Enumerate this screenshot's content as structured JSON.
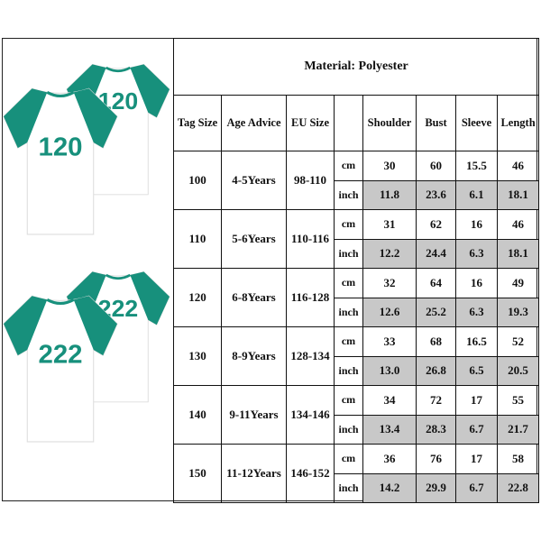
{
  "title": "Material: Polyester",
  "headers": {
    "tag_size": "Tag Size",
    "age_advice": "Age Advice",
    "eu_size": "EU Size",
    "unit": "",
    "shoulder": "Shoulder",
    "bust": "Bust",
    "sleeve": "Sleeve",
    "length": "Length"
  },
  "shirt_numbers": [
    "120",
    "222"
  ],
  "colors": {
    "sleeve_green": "#17907c",
    "inch_row_fill": "#c8c8c8"
  },
  "rows": [
    {
      "tag": "100",
      "age": "4-5Years",
      "eu": "98-110",
      "cm": {
        "unit": "cm",
        "shoulder": "30",
        "bust": "60",
        "sleeve": "15.5",
        "length": "46"
      },
      "inch": {
        "unit": "inch",
        "shoulder": "11.8",
        "bust": "23.6",
        "sleeve": "6.1",
        "length": "18.1"
      }
    },
    {
      "tag": "110",
      "age": "5-6Years",
      "eu": "110-116",
      "cm": {
        "unit": "cm",
        "shoulder": "31",
        "bust": "62",
        "sleeve": "16",
        "length": "46"
      },
      "inch": {
        "unit": "inch",
        "shoulder": "12.2",
        "bust": "24.4",
        "sleeve": "6.3",
        "length": "18.1"
      }
    },
    {
      "tag": "120",
      "age": "6-8Years",
      "eu": "116-128",
      "cm": {
        "unit": "cm",
        "shoulder": "32",
        "bust": "64",
        "sleeve": "16",
        "length": "49"
      },
      "inch": {
        "unit": "inch",
        "shoulder": "12.6",
        "bust": "25.2",
        "sleeve": "6.3",
        "length": "19.3"
      }
    },
    {
      "tag": "130",
      "age": "8-9Years",
      "eu": "128-134",
      "cm": {
        "unit": "cm",
        "shoulder": "33",
        "bust": "68",
        "sleeve": "16.5",
        "length": "52"
      },
      "inch": {
        "unit": "inch",
        "shoulder": "13.0",
        "bust": "26.8",
        "sleeve": "6.5",
        "length": "20.5"
      }
    },
    {
      "tag": "140",
      "age": "9-11Years",
      "eu": "134-146",
      "cm": {
        "unit": "cm",
        "shoulder": "34",
        "bust": "72",
        "sleeve": "17",
        "length": "55"
      },
      "inch": {
        "unit": "inch",
        "shoulder": "13.4",
        "bust": "28.3",
        "sleeve": "6.7",
        "length": "21.7"
      }
    },
    {
      "tag": "150",
      "age": "11-12Years",
      "eu": "146-152",
      "cm": {
        "unit": "cm",
        "shoulder": "36",
        "bust": "76",
        "sleeve": "17",
        "length": "58"
      },
      "inch": {
        "unit": "inch",
        "shoulder": "14.2",
        "bust": "29.9",
        "sleeve": "6.7",
        "length": "22.8"
      }
    }
  ]
}
